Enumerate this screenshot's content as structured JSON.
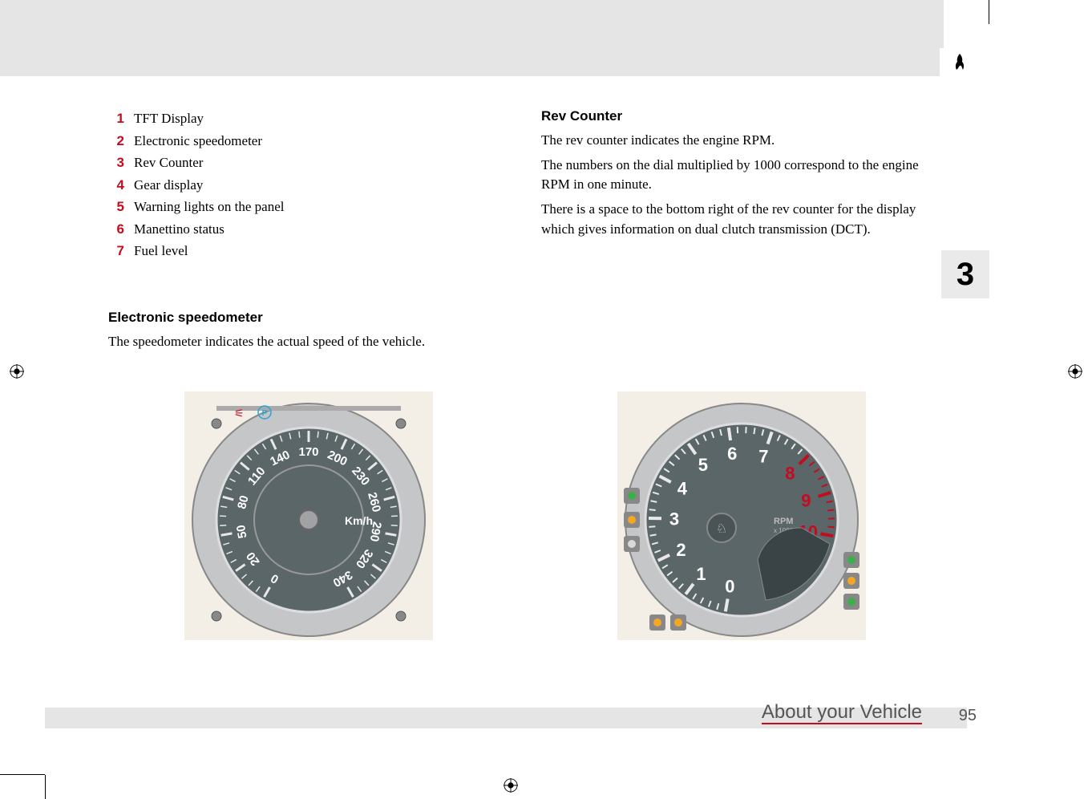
{
  "chapter_number": "3",
  "page_number": "95",
  "section_title": "About your Vehicle",
  "legend": [
    {
      "num": "1",
      "label": "TFT Display"
    },
    {
      "num": "2",
      "label": "Electronic speedometer"
    },
    {
      "num": "3",
      "label": "Rev Counter"
    },
    {
      "num": "4",
      "label": "Gear display"
    },
    {
      "num": "5",
      "label": "Warning lights on the panel"
    },
    {
      "num": "6",
      "label": "Manettino status"
    },
    {
      "num": "7",
      "label": "Fuel level"
    }
  ],
  "left_section": {
    "heading": "Electronic speedometer",
    "body": "The speedometer indicates the actual speed of the vehicle."
  },
  "right_section": {
    "heading": "Rev Counter",
    "body1": "The rev counter indicates the engine RPM.",
    "body2": "The numbers on the dial multiplied by 1000 correspond to the engine RPM in one minute.",
    "body3": "There is a space to the bottom right of the rev counter for the display which gives information on dual clutch transmission (DCT)."
  },
  "speedometer": {
    "bezel_color": "#c4c6c8",
    "dial_color": "#5a6668",
    "tick_color": "#e8e8e8",
    "center_color": "#a0a2a4",
    "unit_label": "Km/h",
    "unit_color": "#ffffff",
    "values": [
      "0",
      "20",
      "50",
      "80",
      "110",
      "140",
      "170",
      "200",
      "230",
      "260",
      "290",
      "320",
      "340"
    ],
    "value_color": "#ffffff",
    "top_icon_color": "#c40c1e",
    "parking_label": "P",
    "parking_color": "#2aa4d8"
  },
  "revcounter": {
    "bezel_color": "#c4c6c8",
    "dial_color": "#5a6668",
    "tick_color": "#e8e8e8",
    "center_color": "#5a6668",
    "unit_label": "RPM",
    "unit_sub": "x 1000",
    "values": [
      "0",
      "1",
      "2",
      "3",
      "4",
      "5",
      "6",
      "7",
      "8",
      "9",
      "10"
    ],
    "value_color": "#ffffff",
    "redline_values": [
      "8",
      "9",
      "10"
    ],
    "redline_color": "#c40c1e",
    "left_indicator_colors": [
      "#3bb04a",
      "#f5a623",
      "#d9d9d9"
    ],
    "right_indicator_colors": [
      "#3bb04a",
      "#f5a623",
      "#3bb04a"
    ]
  },
  "colors": {
    "accent_red": "#c40c1e",
    "grey_bg": "#e5e5e5",
    "cream_bg": "#f3efe7"
  }
}
